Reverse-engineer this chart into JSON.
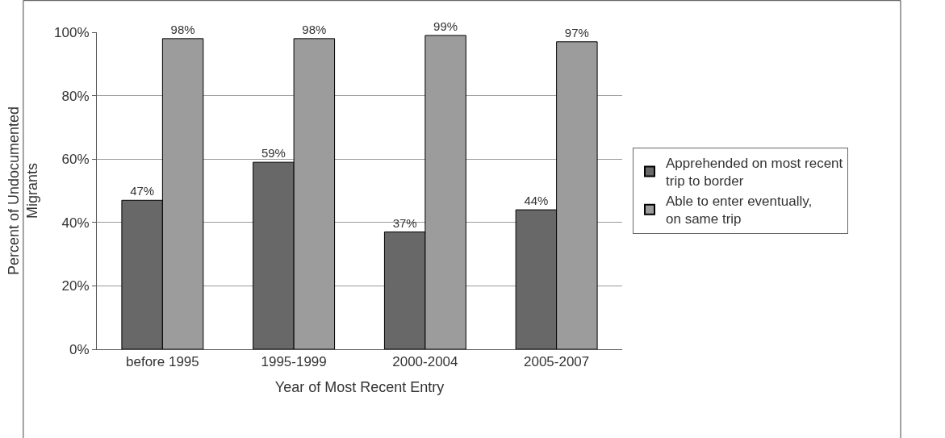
{
  "chart_data": {
    "type": "bar",
    "xlabel": "Year of Most Recent Entry",
    "ylabel": "Percent of Undocumented Migrants",
    "categories": [
      "before 1995",
      "1995-1999",
      "2000-2004",
      "2005-2007"
    ],
    "series": [
      {
        "name": "Apprehended on most recent trip to border",
        "color": "#686868",
        "values": [
          47,
          59,
          37,
          44
        ],
        "value_labels": [
          "47%",
          "59%",
          "37%",
          "44%"
        ]
      },
      {
        "name": "Able to enter eventually, on same trip",
        "color": "#9c9c9c",
        "values": [
          98,
          98,
          99,
          97
        ],
        "value_labels": [
          "98%",
          "98%",
          "99%",
          "97%"
        ]
      }
    ],
    "ylim": [
      0,
      100
    ],
    "yticks": [
      {
        "value": 0,
        "label": "0%"
      },
      {
        "value": 20,
        "label": "20%"
      },
      {
        "value": 40,
        "label": "40%"
      },
      {
        "value": 60,
        "label": "60%"
      },
      {
        "value": 80,
        "label": "80%"
      },
      {
        "value": 100,
        "label": "100%"
      }
    ],
    "grid": "y",
    "legend": "right"
  }
}
